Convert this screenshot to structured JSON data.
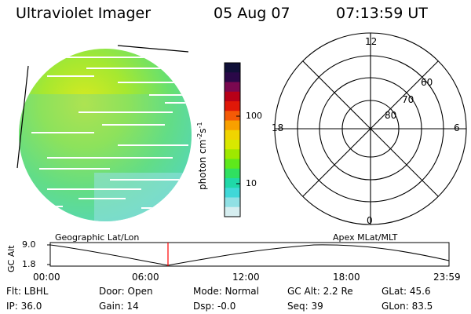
{
  "header": {
    "instrument": "Ultraviolet Imager",
    "date": "05 Aug 07",
    "time": "07:13:59 UT"
  },
  "colorbar": {
    "label": "photon cm",
    "label_sup1": "-2",
    "label_mid": "s",
    "label_sup2": "-1",
    "ticks": [
      "100",
      "10"
    ],
    "colors_top_to_bottom": [
      "#101038",
      "#2a0848",
      "#7a0850",
      "#b80018",
      "#e01808",
      "#f45a06",
      "#f8a000",
      "#f0d400",
      "#d8e800",
      "#9ee800",
      "#5ee81c",
      "#30e060",
      "#20d8a8",
      "#40d8d8",
      "#90e0e4",
      "#d6eef0"
    ]
  },
  "polar_grid": {
    "mlt_labels": [
      "12",
      "18",
      "6",
      "0"
    ],
    "lat_labels": [
      "60",
      "70",
      "80"
    ]
  },
  "timeline": {
    "left_label": "Geographic Lat/Lon",
    "right_label": "Apex MLat/MLT",
    "ylabel": "GC Alt",
    "yticks": [
      "9.0",
      "1.8"
    ],
    "xticks": [
      "00:00",
      "06:00",
      "12:00",
      "18:00",
      "23:59"
    ],
    "current_marker_color": "#ff0000"
  },
  "info": {
    "flt": "Flt: LBHL",
    "ip": "IP: 36.0",
    "door": "Door: Open",
    "gain": "Gain: 14",
    "mode": "Mode: Normal",
    "dsp": "Dsp:   -0.0",
    "gcalt": "GC Alt: 2.2 Re",
    "seq": "Seq: 39",
    "glat": "GLat:  45.6",
    "glon": "GLon:  83.5"
  }
}
